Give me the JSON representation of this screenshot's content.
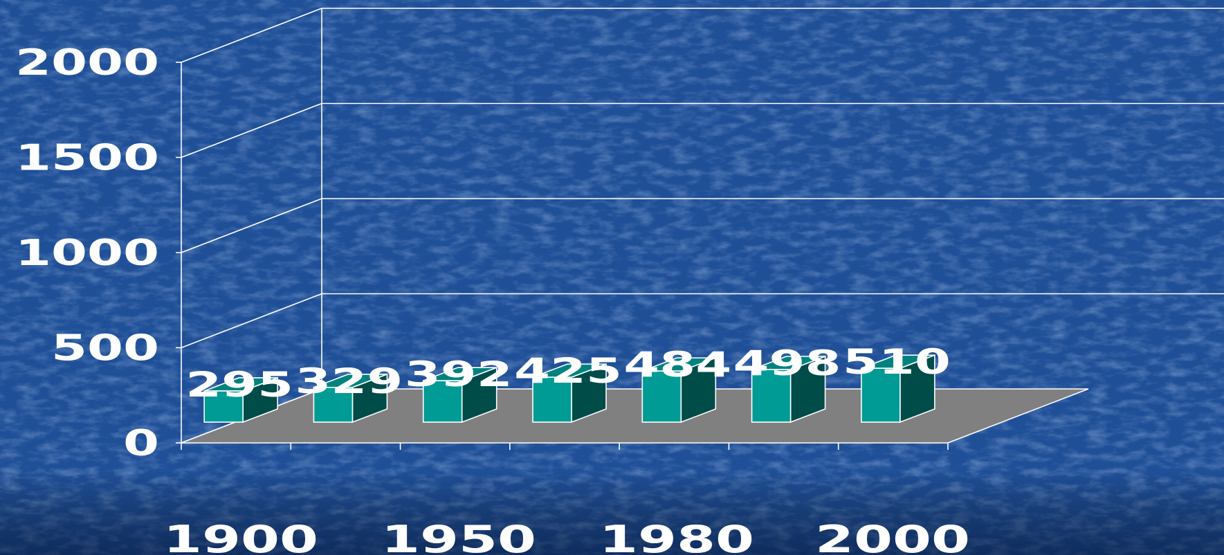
{
  "chart_data": {
    "type": "bar",
    "style": "3d-column",
    "categories": [
      "",
      "",
      "",
      "",
      "",
      "",
      ""
    ],
    "values": [
      295,
      329,
      392,
      425,
      484,
      498,
      510
    ],
    "x_tick_labels": [
      "1900",
      "1950",
      "1980",
      "2000"
    ],
    "ylim": [
      0,
      2000
    ],
    "y_ticks": [
      0,
      500,
      1000,
      1500,
      2000
    ],
    "grid": true,
    "legend": "none",
    "colors": {
      "background": "#1f4f97",
      "bar_front": "#009b95",
      "bar_side": "#004c49",
      "bar_top": "#00837e",
      "floor": "#808080",
      "grid": "#ffffff",
      "text": "#ffffff"
    }
  }
}
